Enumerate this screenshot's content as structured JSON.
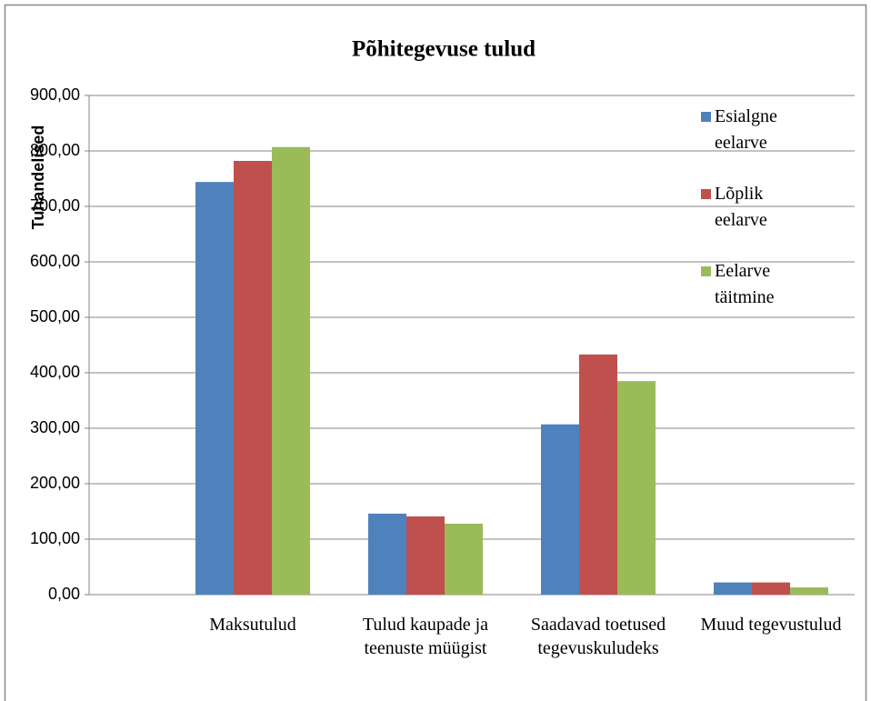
{
  "chart_data": {
    "type": "bar",
    "title": "Põhitegevuse tulud",
    "y_label": "Tuhandelised",
    "categories": [
      "Maksutulud",
      "Tulud kaupade ja teenuste müügist",
      "Saadavad toetused tegevuskuludeks",
      "Muud tegevustulud"
    ],
    "series": [
      {
        "name": "Esialgne eelarve",
        "color": "#4f81bd",
        "values": [
          744,
          146,
          307,
          22
        ]
      },
      {
        "name": "Lõplik eelarve",
        "color": "#c0504d",
        "values": [
          782,
          141,
          433,
          22
        ]
      },
      {
        "name": "Eelarve täitmine",
        "color": "#9bbb59",
        "values": [
          807,
          128,
          385,
          13
        ]
      }
    ],
    "ylim": [
      0,
      900
    ],
    "yticks": [
      {
        "value": 0,
        "label": "0,00"
      },
      {
        "value": 100,
        "label": "100,00"
      },
      {
        "value": 200,
        "label": "200,00"
      },
      {
        "value": 300,
        "label": "300,00"
      },
      {
        "value": 400,
        "label": "400,00"
      },
      {
        "value": 500,
        "label": "500,00"
      },
      {
        "value": 600,
        "label": "600,00"
      },
      {
        "value": 700,
        "label": "700,00"
      },
      {
        "value": 800,
        "label": "800,00"
      },
      {
        "value": 900,
        "label": "900,00"
      }
    ],
    "grid": true,
    "legend": "right"
  }
}
